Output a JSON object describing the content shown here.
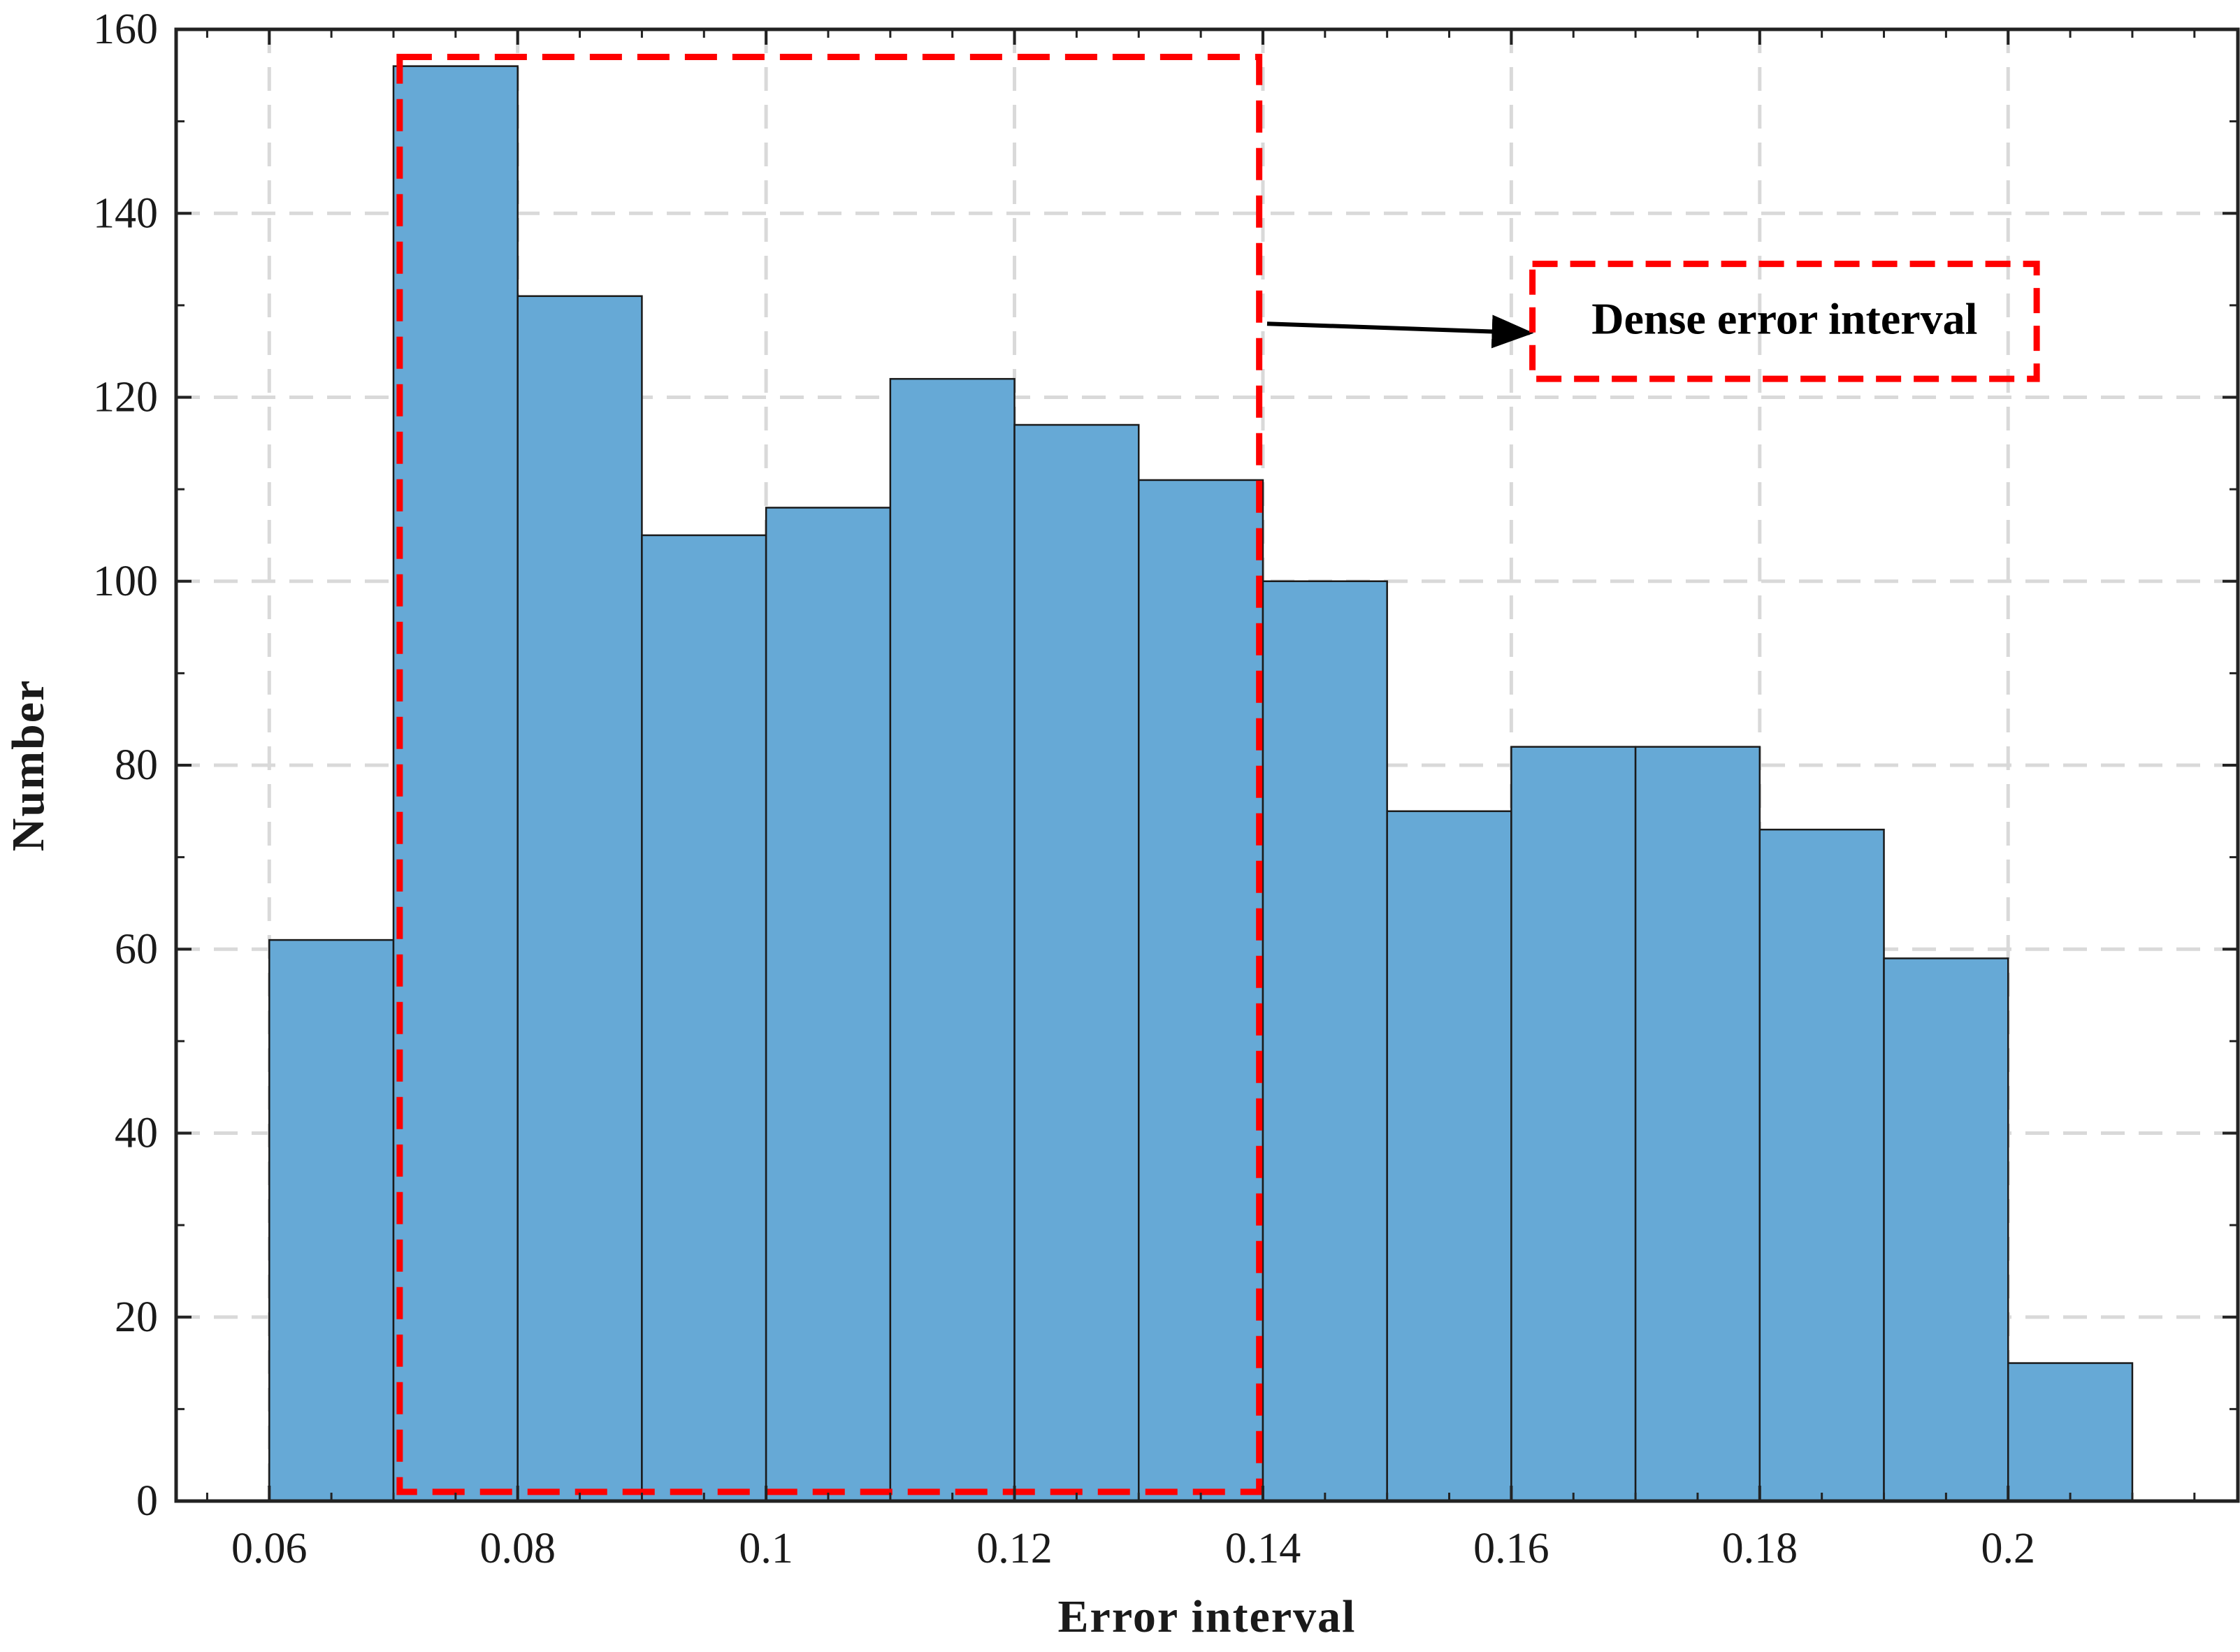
{
  "chart_data": {
    "type": "bar",
    "title": "",
    "xlabel": "Error interval",
    "ylabel": "Number",
    "bin_edges": [
      0.06,
      0.07,
      0.08,
      0.09,
      0.1,
      0.11,
      0.12,
      0.13,
      0.14,
      0.15,
      0.16,
      0.17,
      0.18,
      0.19,
      0.2,
      0.21
    ],
    "values": [
      61,
      156,
      131,
      105,
      108,
      122,
      117,
      111,
      100,
      75,
      82,
      82,
      73,
      59,
      15
    ],
    "xlim": [
      0.0525,
      0.2185
    ],
    "ylim": [
      0,
      160
    ],
    "xticks": [
      0.06,
      0.08,
      0.1,
      0.12,
      0.14,
      0.16,
      0.18,
      0.2
    ],
    "xtick_labels": [
      "0.06",
      "0.08",
      "0.1",
      "0.12",
      "0.14",
      "0.16",
      "0.18",
      "0.2"
    ],
    "yticks": [
      0,
      20,
      40,
      60,
      80,
      100,
      120,
      140,
      160
    ],
    "ytick_labels": [
      "0",
      "20",
      "40",
      "60",
      "80",
      "100",
      "120",
      "140",
      "160"
    ],
    "grid": true,
    "bar_color": "#66A9D6",
    "bar_edge_color": "#1a1a1a",
    "annotation": {
      "text": "Dense error interval",
      "color": "#ff0000",
      "region": {
        "x0": 0.0705,
        "x1": 0.1397,
        "y0": 1,
        "y1": 157
      },
      "label_box": {
        "x0": 0.1617,
        "x1": 0.2023,
        "y0": 122,
        "y1": 134.5
      },
      "arrow": {
        "x_from": 0.14,
        "y_from": 128,
        "x_to": 0.1617,
        "y_to": 127
      }
    }
  }
}
